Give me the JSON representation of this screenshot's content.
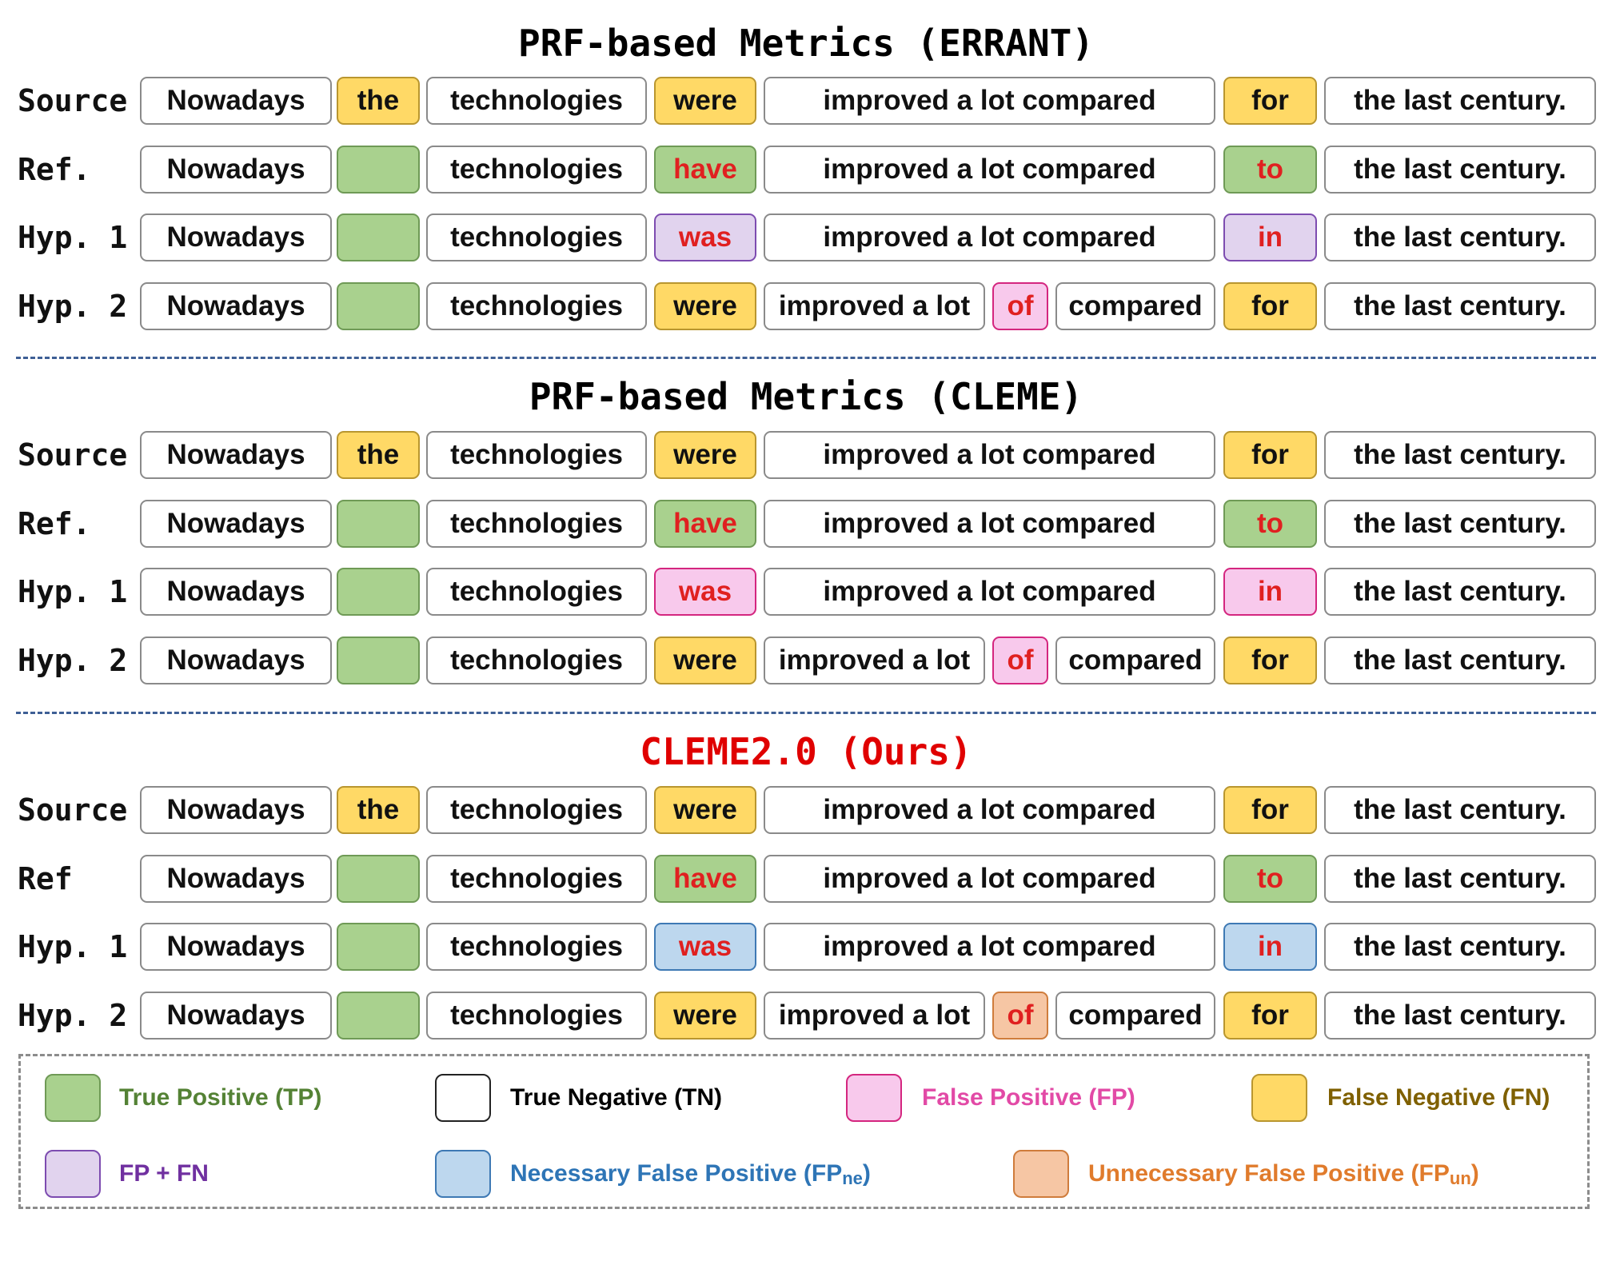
{
  "colors": {
    "tp": "#a9d18e",
    "tp_border": "#6f9a56",
    "tn": "#ffffff",
    "tn_border": "#8a8a8a",
    "fp": "#f8c9ec",
    "fp_border": "#d4267f",
    "fn": "#ffd966",
    "fn_border": "#b9962f",
    "fpfn": "#e1d3ee",
    "fpfn_border": "#7d4cb0",
    "fpne": "#bdd7ee",
    "fpne_border": "#3e79b4",
    "fpun": "#f6c6a4",
    "fpun_border": "#cf7c3c",
    "edit_text": "#e02020",
    "title_highlight": "#e00000"
  },
  "panels": [
    {
      "title": "PRF-based Metrics (ERRANT)",
      "title_color": "#000000",
      "rows": [
        {
          "label": "Source",
          "cells": [
            {
              "text": "Nowadays",
              "cls": "tn"
            },
            {
              "text": "the",
              "cls": "fn"
            },
            {
              "text": "technologies",
              "cls": "tn"
            },
            {
              "text": "were",
              "cls": "fn"
            },
            {
              "text": "improved a lot compared",
              "cls": "tn"
            },
            {
              "text": "for",
              "cls": "fn"
            },
            {
              "text": "the last century.",
              "cls": "tn"
            }
          ]
        },
        {
          "label": "Ref.",
          "cells": [
            {
              "text": "Nowadays",
              "cls": "tn"
            },
            {
              "text": "",
              "cls": "tp"
            },
            {
              "text": "technologies",
              "cls": "tn"
            },
            {
              "text": "have",
              "cls": "tp",
              "red": true
            },
            {
              "text": "improved a lot compared",
              "cls": "tn"
            },
            {
              "text": "to",
              "cls": "tp",
              "red": true
            },
            {
              "text": "the last century.",
              "cls": "tn"
            }
          ]
        },
        {
          "label": "Hyp. 1",
          "cells": [
            {
              "text": "Nowadays",
              "cls": "tn"
            },
            {
              "text": "",
              "cls": "tp"
            },
            {
              "text": "technologies",
              "cls": "tn"
            },
            {
              "text": "was",
              "cls": "fpfn",
              "red": true
            },
            {
              "text": "improved a lot compared",
              "cls": "tn"
            },
            {
              "text": "in",
              "cls": "fpfn",
              "red": true
            },
            {
              "text": "the last century.",
              "cls": "tn"
            }
          ]
        },
        {
          "label": "Hyp. 2",
          "split": true,
          "cells": [
            {
              "text": "Nowadays",
              "cls": "tn"
            },
            {
              "text": "",
              "cls": "tp"
            },
            {
              "text": "technologies",
              "cls": "tn"
            },
            {
              "text": "were",
              "cls": "fn"
            },
            {
              "text": "improved a lot",
              "cls": "tn"
            },
            {
              "text": "of",
              "cls": "fp",
              "red": true
            },
            {
              "text": "compared",
              "cls": "tn"
            },
            {
              "text": "for",
              "cls": "fn"
            },
            {
              "text": "the last century.",
              "cls": "tn"
            }
          ]
        }
      ]
    },
    {
      "title": "PRF-based Metrics (CLEME)",
      "title_color": "#000000",
      "rows": [
        {
          "label": "Source",
          "cells": [
            {
              "text": "Nowadays",
              "cls": "tn"
            },
            {
              "text": "the",
              "cls": "fn"
            },
            {
              "text": "technologies",
              "cls": "tn"
            },
            {
              "text": "were",
              "cls": "fn"
            },
            {
              "text": "improved a lot compared",
              "cls": "tn"
            },
            {
              "text": "for",
              "cls": "fn"
            },
            {
              "text": "the last century.",
              "cls": "tn"
            }
          ]
        },
        {
          "label": "Ref.",
          "cells": [
            {
              "text": "Nowadays",
              "cls": "tn"
            },
            {
              "text": "",
              "cls": "tp"
            },
            {
              "text": "technologies",
              "cls": "tn"
            },
            {
              "text": "have",
              "cls": "tp",
              "red": true
            },
            {
              "text": "improved a lot compared",
              "cls": "tn"
            },
            {
              "text": "to",
              "cls": "tp",
              "red": true
            },
            {
              "text": "the last century.",
              "cls": "tn"
            }
          ]
        },
        {
          "label": "Hyp. 1",
          "cells": [
            {
              "text": "Nowadays",
              "cls": "tn"
            },
            {
              "text": "",
              "cls": "tp"
            },
            {
              "text": "technologies",
              "cls": "tn"
            },
            {
              "text": "was",
              "cls": "fp",
              "red": true
            },
            {
              "text": "improved a lot compared",
              "cls": "tn"
            },
            {
              "text": "in",
              "cls": "fp",
              "red": true
            },
            {
              "text": "the last century.",
              "cls": "tn"
            }
          ]
        },
        {
          "label": "Hyp. 2",
          "split": true,
          "cells": [
            {
              "text": "Nowadays",
              "cls": "tn"
            },
            {
              "text": "",
              "cls": "tp"
            },
            {
              "text": "technologies",
              "cls": "tn"
            },
            {
              "text": "were",
              "cls": "fn"
            },
            {
              "text": "improved a lot",
              "cls": "tn"
            },
            {
              "text": "of",
              "cls": "fp",
              "red": true
            },
            {
              "text": "compared",
              "cls": "tn"
            },
            {
              "text": "for",
              "cls": "fn"
            },
            {
              "text": "the last century.",
              "cls": "tn"
            }
          ]
        }
      ]
    },
    {
      "title": "CLEME2.0 (Ours)",
      "title_color": "#e00000",
      "rows": [
        {
          "label": "Source",
          "cells": [
            {
              "text": "Nowadays",
              "cls": "tn"
            },
            {
              "text": "the",
              "cls": "fn"
            },
            {
              "text": "technologies",
              "cls": "tn"
            },
            {
              "text": "were",
              "cls": "fn"
            },
            {
              "text": "improved a lot compared",
              "cls": "tn"
            },
            {
              "text": "for",
              "cls": "fn"
            },
            {
              "text": "the last century.",
              "cls": "tn"
            }
          ]
        },
        {
          "label": "Ref",
          "cells": [
            {
              "text": "Nowadays",
              "cls": "tn"
            },
            {
              "text": "",
              "cls": "tp"
            },
            {
              "text": "technologies",
              "cls": "tn"
            },
            {
              "text": "have",
              "cls": "tp",
              "red": true
            },
            {
              "text": "improved a lot compared",
              "cls": "tn"
            },
            {
              "text": "to",
              "cls": "tp",
              "red": true
            },
            {
              "text": "the last century.",
              "cls": "tn"
            }
          ]
        },
        {
          "label": "Hyp. 1",
          "cells": [
            {
              "text": "Nowadays",
              "cls": "tn"
            },
            {
              "text": "",
              "cls": "tp"
            },
            {
              "text": "technologies",
              "cls": "tn"
            },
            {
              "text": "was",
              "cls": "fpne",
              "red": true
            },
            {
              "text": "improved a lot compared",
              "cls": "tn"
            },
            {
              "text": "in",
              "cls": "fpne",
              "red": true
            },
            {
              "text": "the last century.",
              "cls": "tn"
            }
          ]
        },
        {
          "label": "Hyp. 2",
          "split": true,
          "cells": [
            {
              "text": "Nowadays",
              "cls": "tn"
            },
            {
              "text": "",
              "cls": "tp"
            },
            {
              "text": "technologies",
              "cls": "tn"
            },
            {
              "text": "were",
              "cls": "fn"
            },
            {
              "text": "improved a lot",
              "cls": "tn"
            },
            {
              "text": "of",
              "cls": "fpun",
              "red": true
            },
            {
              "text": "compared",
              "cls": "tn"
            },
            {
              "text": "for",
              "cls": "fn"
            },
            {
              "text": "the last century.",
              "cls": "tn"
            }
          ]
        }
      ]
    }
  ],
  "legend": [
    {
      "cls": "tp",
      "label": "True Positive (TP)",
      "sub": "",
      "tail": "",
      "color": "#548235"
    },
    {
      "cls": "tn",
      "label": "True Negative (TN)",
      "sub": "",
      "tail": "",
      "color": "#000000"
    },
    {
      "cls": "fp",
      "label": "False Positive (FP)",
      "sub": "",
      "tail": "",
      "color": "#e24aa6"
    },
    {
      "cls": "fn",
      "label": "False Negative (FN)",
      "sub": "",
      "tail": "",
      "color": "#7f6000"
    },
    {
      "cls": "fpfn",
      "label": "FP + FN",
      "sub": "",
      "tail": "",
      "color": "#7030a0"
    },
    {
      "cls": "fpne",
      "label": "Necessary False Positive (FP",
      "sub": "ne",
      "tail": ")",
      "color": "#2e75b6"
    },
    {
      "cls": "fpun",
      "label": "Unnecessary False Positive (FP",
      "sub": "un",
      "tail": ")",
      "color": "#e07b2c"
    }
  ]
}
